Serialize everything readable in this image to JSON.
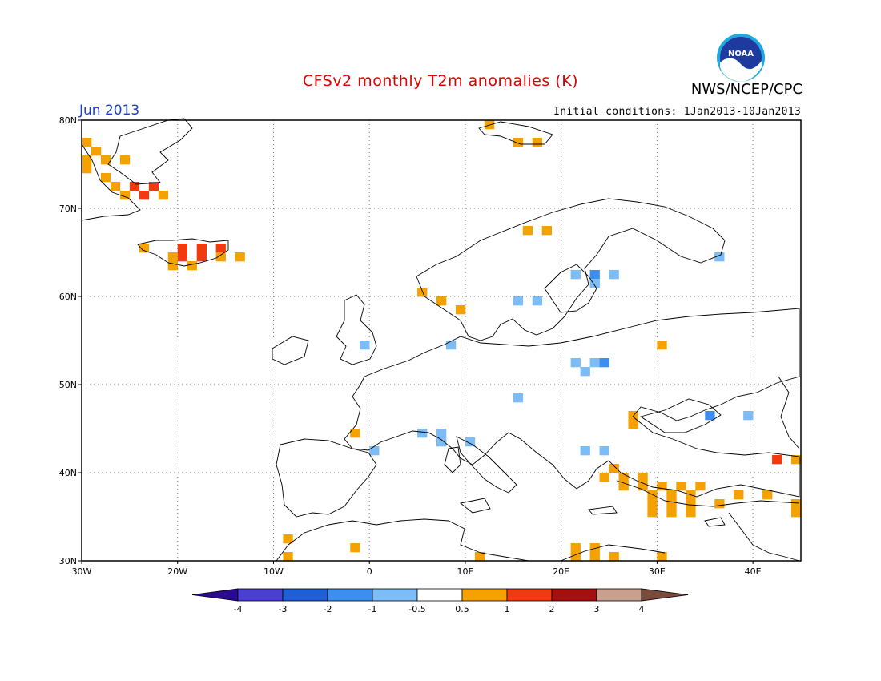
{
  "header": {
    "title": "CFSv2 monthly T2m anomalies (K)",
    "org": "NWS/NCEP/CPC",
    "logo_text": "NOAA",
    "month": "Jun 2013",
    "init_conditions": "Initial conditions: 1Jan2013-10Jan2013"
  },
  "map": {
    "lon_range": [
      -30,
      45
    ],
    "lat_range": [
      30,
      80
    ],
    "lat_ticks": [
      {
        "value": 80,
        "label": "80N"
      },
      {
        "value": 70,
        "label": "70N"
      },
      {
        "value": 60,
        "label": "60N"
      },
      {
        "value": 50,
        "label": "50N"
      },
      {
        "value": 40,
        "label": "40N"
      },
      {
        "value": 30,
        "label": "30N"
      }
    ],
    "lon_ticks": [
      {
        "value": -30,
        "label": "30W"
      },
      {
        "value": -20,
        "label": "20W"
      },
      {
        "value": -10,
        "label": "10W"
      },
      {
        "value": 0,
        "label": "0"
      },
      {
        "value": 10,
        "label": "10E"
      },
      {
        "value": 20,
        "label": "20E"
      },
      {
        "value": 30,
        "label": "30E"
      },
      {
        "value": 40,
        "label": "40E"
      }
    ],
    "grid_lines": "dotted",
    "anomaly_cells_note": "lon/lat of cell centers (1 degree grid), class is the legend bin",
    "anomaly_cells": [
      {
        "lon": -29.5,
        "lat": 77.5,
        "class": "0.5-1"
      },
      {
        "lon": -28.5,
        "lat": 76.5,
        "class": "0.5-1"
      },
      {
        "lon": -27.5,
        "lat": 75.5,
        "class": "0.5-1"
      },
      {
        "lon": -29.5,
        "lat": 75.5,
        "class": "0.5-1"
      },
      {
        "lon": -25.5,
        "lat": 75.5,
        "class": "0.5-1"
      },
      {
        "lon": -29.5,
        "lat": 74.5,
        "class": "0.5-1"
      },
      {
        "lon": -27.5,
        "lat": 73.5,
        "class": "0.5-1"
      },
      {
        "lon": -26.5,
        "lat": 72.5,
        "class": "0.5-1"
      },
      {
        "lon": -24.5,
        "lat": 72.5,
        "class": "1-2"
      },
      {
        "lon": -22.5,
        "lat": 72.5,
        "class": "1-2"
      },
      {
        "lon": -23.5,
        "lat": 71.5,
        "class": "1-2"
      },
      {
        "lon": -21.5,
        "lat": 71.5,
        "class": "0.5-1"
      },
      {
        "lon": -25.5,
        "lat": 71.5,
        "class": "0.5-1"
      },
      {
        "lon": -23.5,
        "lat": 65.5,
        "class": "0.5-1"
      },
      {
        "lon": -19.5,
        "lat": 65.5,
        "class": "1-2"
      },
      {
        "lon": -17.5,
        "lat": 65.5,
        "class": "1-2"
      },
      {
        "lon": -15.5,
        "lat": 65.5,
        "class": "1-2"
      },
      {
        "lon": -19.5,
        "lat": 64.5,
        "class": "1-2"
      },
      {
        "lon": -17.5,
        "lat": 64.5,
        "class": "1-2"
      },
      {
        "lon": -20.5,
        "lat": 64.5,
        "class": "0.5-1"
      },
      {
        "lon": -15.5,
        "lat": 64.5,
        "class": "0.5-1"
      },
      {
        "lon": -13.5,
        "lat": 64.5,
        "class": "0.5-1"
      },
      {
        "lon": -20.5,
        "lat": 63.5,
        "class": "0.5-1"
      },
      {
        "lon": -18.5,
        "lat": 63.5,
        "class": "0.5-1"
      },
      {
        "lon": 12.5,
        "lat": 79.5,
        "class": "0.5-1"
      },
      {
        "lon": 15.5,
        "lat": 77.5,
        "class": "0.5-1"
      },
      {
        "lon": 17.5,
        "lat": 77.5,
        "class": "0.5-1"
      },
      {
        "lon": 16.5,
        "lat": 67.5,
        "class": "0.5-1"
      },
      {
        "lon": 18.5,
        "lat": 67.5,
        "class": "0.5-1"
      },
      {
        "lon": 5.5,
        "lat": 60.5,
        "class": "0.5-1"
      },
      {
        "lon": 7.5,
        "lat": 59.5,
        "class": "0.5-1"
      },
      {
        "lon": 9.5,
        "lat": 58.5,
        "class": "0.5-1"
      },
      {
        "lon": 21.5,
        "lat": 62.5,
        "class": "-1--0.5"
      },
      {
        "lon": 23.5,
        "lat": 62.5,
        "class": "-2--1"
      },
      {
        "lon": 25.5,
        "lat": 62.5,
        "class": "-1--0.5"
      },
      {
        "lon": 23.5,
        "lat": 61.5,
        "class": "-1--0.5"
      },
      {
        "lon": 15.5,
        "lat": 59.5,
        "class": "-1--0.5"
      },
      {
        "lon": 17.5,
        "lat": 59.5,
        "class": "-1--0.5"
      },
      {
        "lon": 36.5,
        "lat": 64.5,
        "class": "-1--0.5"
      },
      {
        "lon": -0.5,
        "lat": 54.5,
        "class": "-1--0.5"
      },
      {
        "lon": 8.5,
        "lat": 54.5,
        "class": "-1--0.5"
      },
      {
        "lon": 30.5,
        "lat": 54.5,
        "class": "0.5-1"
      },
      {
        "lon": 21.5,
        "lat": 52.5,
        "class": "-1--0.5"
      },
      {
        "lon": 23.5,
        "lat": 52.5,
        "class": "-1--0.5"
      },
      {
        "lon": 24.5,
        "lat": 52.5,
        "class": "-2--1"
      },
      {
        "lon": 22.5,
        "lat": 51.5,
        "class": "-1--0.5"
      },
      {
        "lon": 15.5,
        "lat": 48.5,
        "class": "-1--0.5"
      },
      {
        "lon": 27.5,
        "lat": 46.5,
        "class": "0.5-1"
      },
      {
        "lon": 27.5,
        "lat": 45.5,
        "class": "0.5-1"
      },
      {
        "lon": 35.5,
        "lat": 46.5,
        "class": "-2--1"
      },
      {
        "lon": 39.5,
        "lat": 46.5,
        "class": "-1--0.5"
      },
      {
        "lon": -1.5,
        "lat": 44.5,
        "class": "0.5-1"
      },
      {
        "lon": 5.5,
        "lat": 44.5,
        "class": "-1--0.5"
      },
      {
        "lon": 7.5,
        "lat": 44.5,
        "class": "-1--0.5"
      },
      {
        "lon": 7.5,
        "lat": 43.5,
        "class": "-1--0.5"
      },
      {
        "lon": 10.5,
        "lat": 43.5,
        "class": "-1--0.5"
      },
      {
        "lon": 0.5,
        "lat": 42.5,
        "class": "-1--0.5"
      },
      {
        "lon": 22.5,
        "lat": 42.5,
        "class": "-1--0.5"
      },
      {
        "lon": 24.5,
        "lat": 42.5,
        "class": "-1--0.5"
      },
      {
        "lon": 25.5,
        "lat": 40.5,
        "class": "0.5-1"
      },
      {
        "lon": 26.5,
        "lat": 39.5,
        "class": "0.5-1"
      },
      {
        "lon": 24.5,
        "lat": 39.5,
        "class": "0.5-1"
      },
      {
        "lon": 28.5,
        "lat": 39.5,
        "class": "0.5-1"
      },
      {
        "lon": 26.5,
        "lat": 38.5,
        "class": "0.5-1"
      },
      {
        "lon": 28.5,
        "lat": 38.5,
        "class": "0.5-1"
      },
      {
        "lon": 30.5,
        "lat": 38.5,
        "class": "0.5-1"
      },
      {
        "lon": 32.5,
        "lat": 38.5,
        "class": "0.5-1"
      },
      {
        "lon": 34.5,
        "lat": 38.5,
        "class": "0.5-1"
      },
      {
        "lon": 29.5,
        "lat": 37.5,
        "class": "0.5-1"
      },
      {
        "lon": 31.5,
        "lat": 37.5,
        "class": "0.5-1"
      },
      {
        "lon": 33.5,
        "lat": 37.5,
        "class": "0.5-1"
      },
      {
        "lon": 29.5,
        "lat": 36.5,
        "class": "0.5-1"
      },
      {
        "lon": 31.5,
        "lat": 36.5,
        "class": "0.5-1"
      },
      {
        "lon": 33.5,
        "lat": 36.5,
        "class": "0.5-1"
      },
      {
        "lon": 29.5,
        "lat": 35.5,
        "class": "0.5-1"
      },
      {
        "lon": 31.5,
        "lat": 35.5,
        "class": "0.5-1"
      },
      {
        "lon": 33.5,
        "lat": 35.5,
        "class": "0.5-1"
      },
      {
        "lon": 42.5,
        "lat": 41.5,
        "class": "1-2"
      },
      {
        "lon": 44.5,
        "lat": 41.5,
        "class": "0.5-1"
      },
      {
        "lon": 38.5,
        "lat": 37.5,
        "class": "0.5-1"
      },
      {
        "lon": 41.5,
        "lat": 37.5,
        "class": "0.5-1"
      },
      {
        "lon": 36.5,
        "lat": 36.5,
        "class": "0.5-1"
      },
      {
        "lon": 44.5,
        "lat": 36.5,
        "class": "0.5-1"
      },
      {
        "lon": 44.5,
        "lat": 35.5,
        "class": "0.5-1"
      },
      {
        "lon": -8.5,
        "lat": 32.5,
        "class": "0.5-1"
      },
      {
        "lon": -1.5,
        "lat": 31.5,
        "class": "0.5-1"
      },
      {
        "lon": -8.5,
        "lat": 30.5,
        "class": "0.5-1"
      },
      {
        "lon": 11.5,
        "lat": 30.5,
        "class": "0.5-1"
      },
      {
        "lon": 21.5,
        "lat": 31.5,
        "class": "0.5-1"
      },
      {
        "lon": 23.5,
        "lat": 31.5,
        "class": "0.5-1"
      },
      {
        "lon": 21.5,
        "lat": 30.5,
        "class": "0.5-1"
      },
      {
        "lon": 23.5,
        "lat": 30.5,
        "class": "0.5-1"
      },
      {
        "lon": 25.5,
        "lat": 30.5,
        "class": "0.5-1"
      },
      {
        "lon": 30.5,
        "lat": 30.5,
        "class": "0.5-1"
      }
    ]
  },
  "legend": {
    "bins": [
      {
        "class": "<-4",
        "color": "#2a0a90"
      },
      {
        "class": "-4--3",
        "color": "#4a3fd0"
      },
      {
        "class": "-3--2",
        "color": "#1f5fd6"
      },
      {
        "class": "-2--1",
        "color": "#3c8fee"
      },
      {
        "class": "-1--0.5",
        "color": "#7cbcf7"
      },
      {
        "class": "-0.5-0.5",
        "color": "#ffffff"
      },
      {
        "class": "0.5-1",
        "color": "#f5a100"
      },
      {
        "class": "1-2",
        "color": "#f03a10"
      },
      {
        "class": "2-3",
        "color": "#a41010"
      },
      {
        "class": "3-4",
        "color": "#c9a08e"
      },
      {
        "class": ">4",
        "color": "#7a4a3a"
      }
    ],
    "tick_labels": [
      "-4",
      "-3",
      "-2",
      "-1",
      "-0.5",
      "0.5",
      "1",
      "2",
      "3",
      "4"
    ]
  }
}
